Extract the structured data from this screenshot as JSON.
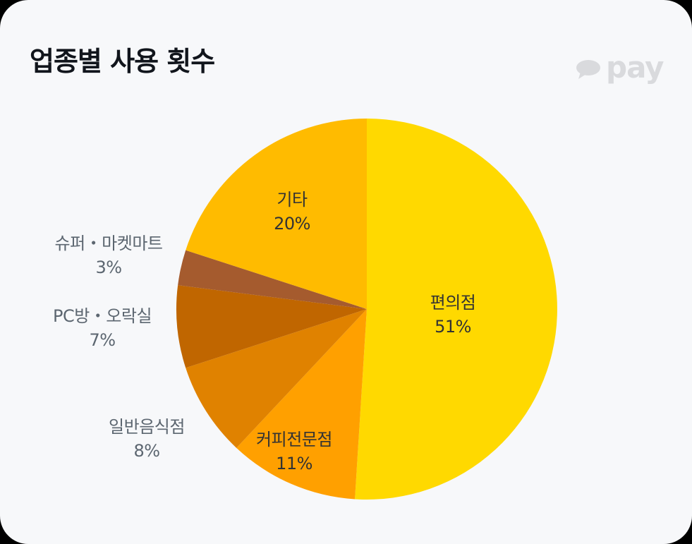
{
  "header": {
    "title": "업종별 사용 횟수",
    "logo_text": "pay",
    "logo_icon": "speech-bubble-icon"
  },
  "chart_data": {
    "type": "pie",
    "title": "업종별 사용 횟수",
    "start_angle_deg": 0,
    "direction": "clockwise",
    "categories": [
      "편의점",
      "커피전문점",
      "일반음식점",
      "PC방・오락실",
      "슈퍼・마켓마트",
      "기타"
    ],
    "values": [
      51,
      11,
      8,
      7,
      3,
      20
    ],
    "unit": "%",
    "colors": [
      "#ffd900",
      "#ffa000",
      "#e08200",
      "#c06600",
      "#a55b2e",
      "#ffbb00"
    ],
    "legend": "none (labels on/next to slices)"
  },
  "labels": [
    {
      "name": "편의점",
      "pct": "51%"
    },
    {
      "name": "커피전문점",
      "pct": "11%"
    },
    {
      "name": "일반음식점",
      "pct": "8%"
    },
    {
      "name": "PC방・오락실",
      "pct": "7%"
    },
    {
      "name": "슈퍼・마켓마트",
      "pct": "3%"
    },
    {
      "name": "기타",
      "pct": "20%"
    }
  ]
}
